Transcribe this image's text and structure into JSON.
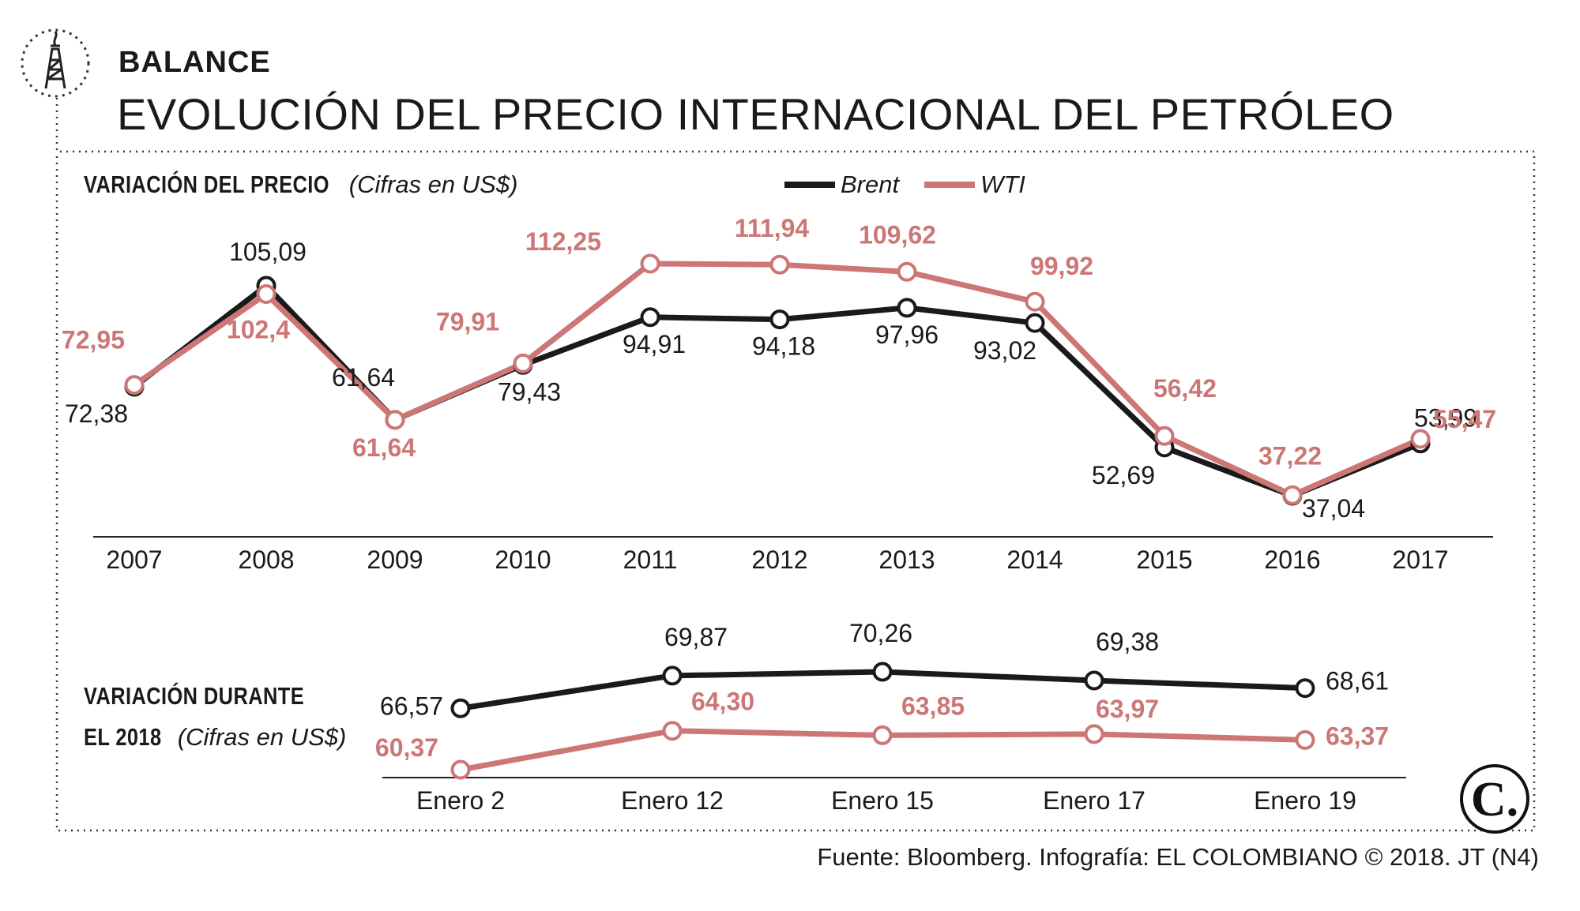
{
  "header": {
    "kicker": "BALANCE",
    "title": "EVOLUCIÓN DEL PRECIO INTERNACIONAL DEL PETRÓLEO",
    "icon": "oil-derrick-icon"
  },
  "source": "Fuente: Bloomberg. Infografía: EL COLOMBIANO © 2018. JT (N4)",
  "logo_text": "C.",
  "colors": {
    "brent": "#1a1a1a",
    "wti": "#cd7676",
    "frame": "#333333"
  },
  "chart_data": [
    {
      "type": "line",
      "title": "VARIACIÓN DEL PRECIO",
      "subtitle": "(Cifras en US$)",
      "categories": [
        "2007",
        "2008",
        "2009",
        "2010",
        "2011",
        "2012",
        "2013",
        "2014",
        "2015",
        "2016",
        "2017"
      ],
      "series": [
        {
          "name": "Brent",
          "values": [
            72.38,
            105.09,
            61.64,
            79.43,
            94.91,
            94.18,
            97.96,
            93.02,
            52.69,
            37.04,
            53.99
          ],
          "labels": [
            "72,38",
            "105,09",
            "61,64",
            "79,43",
            "94,91",
            "94,18",
            "97,96",
            "93,02",
            "52,69",
            "37,04",
            "53,99"
          ]
        },
        {
          "name": "WTI",
          "values": [
            72.95,
            102.4,
            61.64,
            79.91,
            112.25,
            111.94,
            109.62,
            99.92,
            56.42,
            37.22,
            55.47
          ],
          "labels": [
            "72,95",
            "102,4",
            "61,64",
            "79,91",
            "112,25",
            "111,94",
            "109,62",
            "99,92",
            "56,42",
            "37,22",
            "55,47"
          ]
        }
      ],
      "legend": "top-center",
      "grid": false
    },
    {
      "type": "line",
      "title": "VARIACIÓN DURANTE EL 2018",
      "title_lines": [
        "VARIACIÓN DURANTE",
        "EL 2018"
      ],
      "subtitle": "(Cifras en US$)",
      "categories": [
        "Enero 2",
        "Enero 12",
        "Enero 15",
        "Enero 17",
        "Enero 19"
      ],
      "series": [
        {
          "name": "Brent",
          "values": [
            66.57,
            69.87,
            70.26,
            69.38,
            68.61
          ],
          "labels": [
            "66,57",
            "69,87",
            "70,26",
            "69,38",
            "68,61"
          ]
        },
        {
          "name": "WTI",
          "values": [
            60.37,
            64.3,
            63.85,
            63.97,
            63.37
          ],
          "labels": [
            "60,37",
            "64,30",
            "63,85",
            "63,97",
            "63,37"
          ]
        }
      ],
      "grid": false
    }
  ]
}
